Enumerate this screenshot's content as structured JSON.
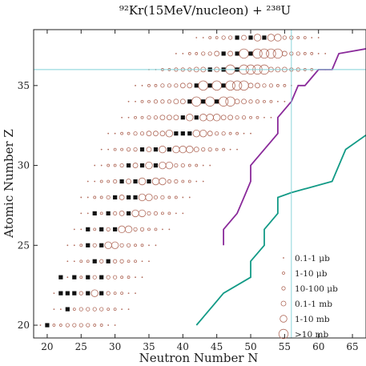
{
  "chart_data": {
    "type": "scatter",
    "title": "⁹²Kr(15MeV/nucleon) + ²³⁸U",
    "xlabel": "Neutron Number N",
    "ylabel": "Atomic Number Z",
    "xlim": [
      18,
      67
    ],
    "ylim": [
      19.2,
      38.5
    ],
    "xticks": [
      20,
      25,
      30,
      35,
      40,
      45,
      50,
      55,
      60,
      65
    ],
    "yticks": [
      20,
      25,
      30,
      35
    ],
    "grid": false,
    "legend": {
      "placement": "bottom-right",
      "entries": [
        {
          "label": "0.1-1 μb",
          "class": 1
        },
        {
          "label": "1-10 μb",
          "class": 2
        },
        {
          "label": "10-100 μb",
          "class": 3
        },
        {
          "label": "0.1-1 mb",
          "class": 4
        },
        {
          "label": "1-10 mb",
          "class": 5
        },
        {
          "label": ">10 mb",
          "class": 6
        }
      ]
    },
    "rows": [
      {
        "z": 20,
        "n_start": 19,
        "n_end": 30
      },
      {
        "z": 21,
        "n_start": 21,
        "n_end": 32
      },
      {
        "z": 22,
        "n_start": 21,
        "n_end": 33
      },
      {
        "z": 23,
        "n_start": 22,
        "n_end": 34
      },
      {
        "z": 24,
        "n_start": 23,
        "n_end": 35
      },
      {
        "z": 25,
        "n_start": 23,
        "n_end": 36
      },
      {
        "z": 26,
        "n_start": 24,
        "n_end": 38
      },
      {
        "z": 27,
        "n_start": 25,
        "n_end": 40
      },
      {
        "z": 28,
        "n_start": 25,
        "n_end": 41
      },
      {
        "z": 29,
        "n_start": 26,
        "n_end": 43
      },
      {
        "z": 30,
        "n_start": 27,
        "n_end": 44
      },
      {
        "z": 31,
        "n_start": 28,
        "n_end": 48
      },
      {
        "z": 32,
        "n_start": 29,
        "n_end": 50
      },
      {
        "z": 33,
        "n_start": 31,
        "n_end": 53
      },
      {
        "z": 34,
        "n_start": 32,
        "n_end": 55
      },
      {
        "z": 35,
        "n_start": 33,
        "n_end": 57
      },
      {
        "z": 36,
        "n_start": 35,
        "n_end": 61
      },
      {
        "z": 37,
        "n_start": 39,
        "n_end": 61
      },
      {
        "z": 38,
        "n_start": 42,
        "n_end": 60
      }
    ],
    "filled_squares": [
      [
        20,
        20
      ],
      [
        23,
        21
      ],
      [
        22,
        22
      ],
      [
        23,
        22
      ],
      [
        24,
        22
      ],
      [
        26,
        22
      ],
      [
        28,
        22
      ],
      [
        22,
        23
      ],
      [
        24,
        23
      ],
      [
        26,
        23
      ],
      [
        28,
        23
      ],
      [
        27,
        24
      ],
      [
        29,
        24
      ],
      [
        26,
        25
      ],
      [
        28,
        25
      ],
      [
        26,
        26
      ],
      [
        28,
        26
      ],
      [
        30,
        26
      ],
      [
        27,
        27
      ],
      [
        29,
        27
      ],
      [
        32,
        27
      ],
      [
        30,
        28
      ],
      [
        32,
        28
      ],
      [
        33,
        28
      ],
      [
        31,
        29
      ],
      [
        33,
        29
      ],
      [
        35,
        29
      ],
      [
        32,
        30
      ],
      [
        34,
        30
      ],
      [
        36,
        30
      ],
      [
        34,
        31
      ],
      [
        36,
        31
      ],
      [
        38,
        31
      ],
      [
        40,
        32
      ],
      [
        39,
        32
      ],
      [
        41,
        32
      ],
      [
        40,
        33
      ],
      [
        42,
        33
      ],
      [
        41,
        34
      ],
      [
        43,
        34
      ],
      [
        45,
        34
      ],
      [
        42,
        35
      ],
      [
        44,
        35
      ],
      [
        46,
        35
      ],
      [
        44,
        36
      ],
      [
        46,
        36
      ],
      [
        48,
        36
      ],
      [
        46,
        37
      ],
      [
        48,
        37
      ],
      [
        50,
        37
      ],
      [
        48,
        38
      ],
      [
        50,
        38
      ],
      [
        52,
        38
      ]
    ],
    "reference_lines": {
      "z": 36,
      "n": 56
    },
    "boundary_lines": [
      {
        "name": "upper",
        "color": "#8a2a9a",
        "points": [
          [
            46,
            25
          ],
          [
            46,
            26
          ],
          [
            48,
            27
          ],
          [
            49,
            28
          ],
          [
            50,
            29
          ],
          [
            50,
            30
          ],
          [
            52,
            31
          ],
          [
            54,
            32
          ],
          [
            54,
            33
          ],
          [
            56,
            34
          ],
          [
            57,
            35
          ],
          [
            58,
            35
          ],
          [
            60,
            36
          ],
          [
            62,
            36
          ],
          [
            63,
            37
          ],
          [
            67,
            37.3
          ]
        ]
      },
      {
        "name": "lower",
        "color": "#129a86",
        "points": [
          [
            42,
            20
          ],
          [
            44,
            21
          ],
          [
            46,
            22
          ],
          [
            50,
            23
          ],
          [
            50,
            24
          ],
          [
            52,
            25
          ],
          [
            52,
            26
          ],
          [
            54,
            27
          ],
          [
            54,
            28
          ],
          [
            56,
            28.3
          ],
          [
            62,
            29
          ],
          [
            63,
            30
          ],
          [
            64,
            31
          ],
          [
            67,
            31.9
          ]
        ]
      }
    ]
  }
}
